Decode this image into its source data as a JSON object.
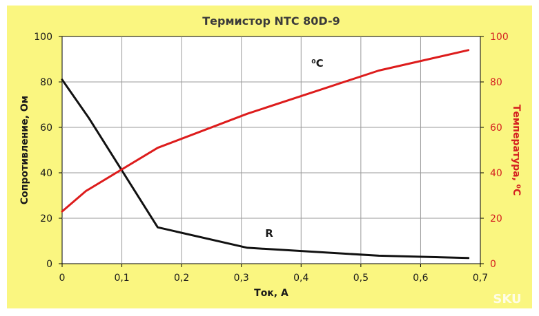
{
  "colors": {
    "background": "#faf680",
    "plot_background": "#ffffff",
    "grid": "#9a9a9a",
    "resistance": "#111111",
    "temperature": "#dd1c1c"
  },
  "watermark": "SKU",
  "chart_data": {
    "type": "line",
    "title": "Термистор NTC 80D-9",
    "xlabel": "Ток, А",
    "ylabel": "Сопротивление, Ом",
    "ylabel_right": "Температура, ⁰С",
    "xlim": [
      0,
      0.7
    ],
    "ylim": [
      0,
      100
    ],
    "ylim_right": [
      0,
      100
    ],
    "grid": true,
    "x_ticks": [
      "0",
      "0,1",
      "0,2",
      "0,3",
      "0,4",
      "0,5",
      "0,6",
      "0,7"
    ],
    "y_ticks": [
      "0",
      "20",
      "40",
      "60",
      "80",
      "100"
    ],
    "y_ticks_right": [
      "0",
      "20",
      "40",
      "60",
      "80",
      "100"
    ],
    "series": [
      {
        "name": "R",
        "axis": "left",
        "x": [
          0,
          0.045,
          0.16,
          0.31,
          0.53,
          0.68
        ],
        "y": [
          81,
          64,
          16,
          7,
          3.5,
          2.5
        ]
      },
      {
        "name": "⁰С",
        "axis": "right",
        "x": [
          0,
          0.04,
          0.16,
          0.31,
          0.53,
          0.68
        ],
        "y": [
          23,
          32,
          51,
          66,
          85,
          94
        ]
      }
    ]
  }
}
